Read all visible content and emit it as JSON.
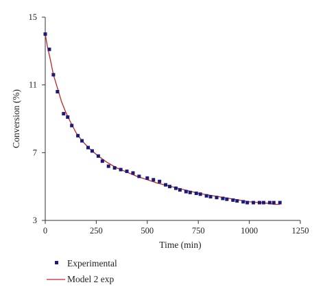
{
  "chart_data": {
    "type": "scatter",
    "xlabel": "Time (min)",
    "ylabel": "Conversion (%)",
    "xlim": [
      0,
      1250
    ],
    "ylim": [
      3,
      15
    ],
    "xticks": [
      0,
      250,
      500,
      750,
      1000,
      1250
    ],
    "yticks": [
      3,
      7,
      11,
      15
    ],
    "grid": false,
    "legend_position": "bottom-left",
    "series": [
      {
        "name": "Experimental",
        "kind": "markers",
        "color": "#1a1a7a",
        "x": [
          0,
          20,
          40,
          60,
          90,
          110,
          130,
          160,
          180,
          210,
          230,
          260,
          280,
          310,
          340,
          370,
          400,
          430,
          460,
          500,
          530,
          560,
          590,
          610,
          640,
          660,
          690,
          710,
          740,
          760,
          790,
          810,
          840,
          870,
          890,
          920,
          940,
          970,
          990,
          1020,
          1050,
          1070,
          1100,
          1120,
          1150
        ],
        "y": [
          14.0,
          13.1,
          11.6,
          10.6,
          9.3,
          9.1,
          8.6,
          8.0,
          7.7,
          7.3,
          7.1,
          6.8,
          6.5,
          6.2,
          6.1,
          6.0,
          5.9,
          5.8,
          5.6,
          5.5,
          5.4,
          5.3,
          5.1,
          5.0,
          4.9,
          4.8,
          4.7,
          4.65,
          4.6,
          4.55,
          4.45,
          4.4,
          4.35,
          4.3,
          4.25,
          4.2,
          4.15,
          4.1,
          4.05,
          4.05,
          4.05,
          4.05,
          4.05,
          4.05,
          4.05
        ]
      },
      {
        "name": "Model 2 exp",
        "kind": "line",
        "color": "#cc2020",
        "x": [
          0,
          10,
          25,
          40,
          60,
          80,
          100,
          120,
          150,
          180,
          220,
          260,
          300,
          350,
          400,
          450,
          500,
          550,
          600,
          650,
          700,
          750,
          800,
          850,
          900,
          950,
          1000,
          1050,
          1100,
          1120,
          1150
        ],
        "y": [
          14.0,
          13.3,
          12.5,
          11.6,
          10.8,
          10.0,
          9.4,
          8.9,
          8.2,
          7.7,
          7.2,
          6.8,
          6.45,
          6.1,
          5.85,
          5.6,
          5.4,
          5.2,
          5.05,
          4.9,
          4.75,
          4.6,
          4.5,
          4.4,
          4.3,
          4.2,
          4.1,
          4.05,
          4.0,
          3.95,
          3.95
        ]
      }
    ]
  }
}
